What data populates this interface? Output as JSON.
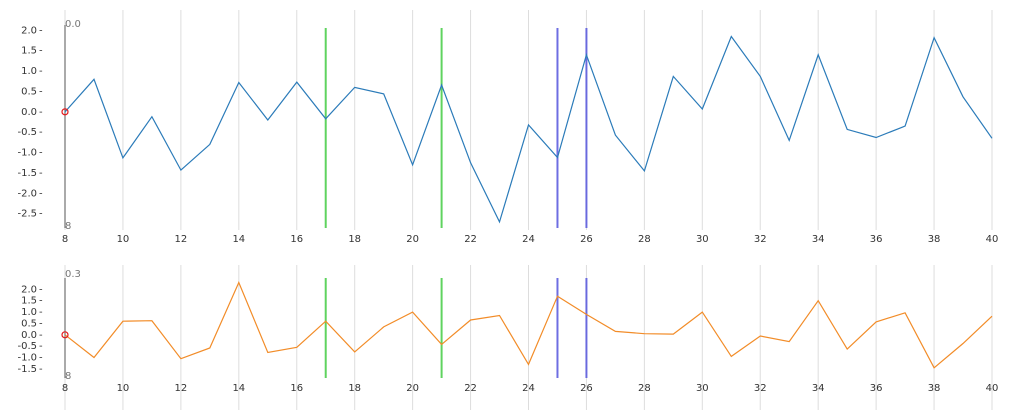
{
  "chart_data": [
    {
      "type": "line",
      "title": "",
      "xlabel": "",
      "ylabel": "",
      "xlim": [
        8,
        40
      ],
      "ylim": [
        -2.9,
        2.5
      ],
      "x_ticks": [
        "8",
        "10",
        "12",
        "14",
        "16",
        "18",
        "20",
        "22",
        "24",
        "26",
        "28",
        "30",
        "32",
        "34",
        "36",
        "38",
        "40"
      ],
      "y_ticks": [
        "2.0",
        "1.5",
        "1.0",
        "0.5",
        "0.0",
        "-0.5",
        "-1.0",
        "-1.5",
        "-2.0",
        "-2.5"
      ],
      "y_tick_values": [
        2.0,
        1.5,
        1.0,
        0.5,
        0.0,
        -0.5,
        -1.0,
        -1.5,
        -2.0,
        -2.5
      ],
      "top_label": "0.0",
      "bottom_label": "8",
      "grid": "vertical",
      "series": [
        {
          "color": "#2b7bb9",
          "x": [
            8,
            9,
            10,
            11,
            12,
            13,
            14,
            15,
            16,
            17,
            18,
            19,
            20,
            21,
            22,
            23,
            24,
            25,
            26,
            27,
            28,
            29,
            30,
            31,
            32,
            33,
            34,
            35,
            36,
            37,
            38,
            39,
            40
          ],
          "values": [
            0.0,
            0.8,
            -1.13,
            -0.12,
            -1.43,
            -0.8,
            0.72,
            -0.2,
            0.73,
            -0.17,
            0.6,
            0.44,
            -1.3,
            0.66,
            -1.25,
            -2.7,
            -0.32,
            -1.12,
            1.4,
            -0.57,
            -1.45,
            0.87,
            0.07,
            1.85,
            0.87,
            -0.7,
            1.4,
            -0.43,
            -0.63,
            -0.35,
            1.82,
            0.37,
            -0.65
          ]
        }
      ],
      "marker": {
        "x": 8,
        "y": 0.0,
        "color": "#e41a1c"
      },
      "event_lines": [
        {
          "x": 17,
          "color": "#44cc44"
        },
        {
          "x": 21,
          "color": "#44cc44"
        },
        {
          "x": 25,
          "color": "#5555dd"
        },
        {
          "x": 26,
          "color": "#5555dd"
        }
      ]
    },
    {
      "type": "line",
      "title": "",
      "xlabel": "",
      "ylabel": "",
      "xlim": [
        8,
        40
      ],
      "ylim": [
        -1.9,
        2.5
      ],
      "x_ticks": [
        "8",
        "10",
        "12",
        "14",
        "16",
        "18",
        "20",
        "22",
        "24",
        "26",
        "28",
        "30",
        "32",
        "34",
        "36",
        "38",
        "40"
      ],
      "y_ticks": [
        "2.0",
        "1.5",
        "1.0",
        "0.5",
        "0.0",
        "-0.5",
        "-1.0",
        "-1.5"
      ],
      "y_tick_values": [
        2.0,
        1.5,
        1.0,
        0.5,
        0.0,
        -0.5,
        -1.0,
        -1.5
      ],
      "top_label": "0.3",
      "bottom_label": "8",
      "grid": "vertical",
      "series": [
        {
          "color": "#f28c28",
          "x": [
            8,
            9,
            10,
            11,
            12,
            13,
            14,
            15,
            16,
            17,
            18,
            19,
            20,
            21,
            22,
            23,
            24,
            25,
            26,
            27,
            28,
            29,
            30,
            31,
            32,
            33,
            34,
            35,
            36,
            37,
            38,
            39,
            40
          ],
          "values": [
            0.0,
            -1.0,
            0.6,
            0.62,
            -1.05,
            -0.58,
            2.3,
            -0.78,
            -0.55,
            0.6,
            -0.75,
            0.35,
            1.0,
            -0.42,
            0.65,
            0.85,
            -1.3,
            1.7,
            0.9,
            0.15,
            0.05,
            0.03,
            1.0,
            -0.95,
            -0.05,
            -0.3,
            1.5,
            -0.63,
            0.57,
            0.97,
            -1.45,
            -0.38,
            0.82
          ]
        }
      ],
      "marker": {
        "x": 8,
        "y": 0.0,
        "color": "#e41a1c"
      },
      "event_lines": [
        {
          "x": 17,
          "color": "#44cc44"
        },
        {
          "x": 21,
          "color": "#44cc44"
        },
        {
          "x": 25,
          "color": "#5555dd"
        },
        {
          "x": 26,
          "color": "#5555dd"
        }
      ]
    }
  ]
}
